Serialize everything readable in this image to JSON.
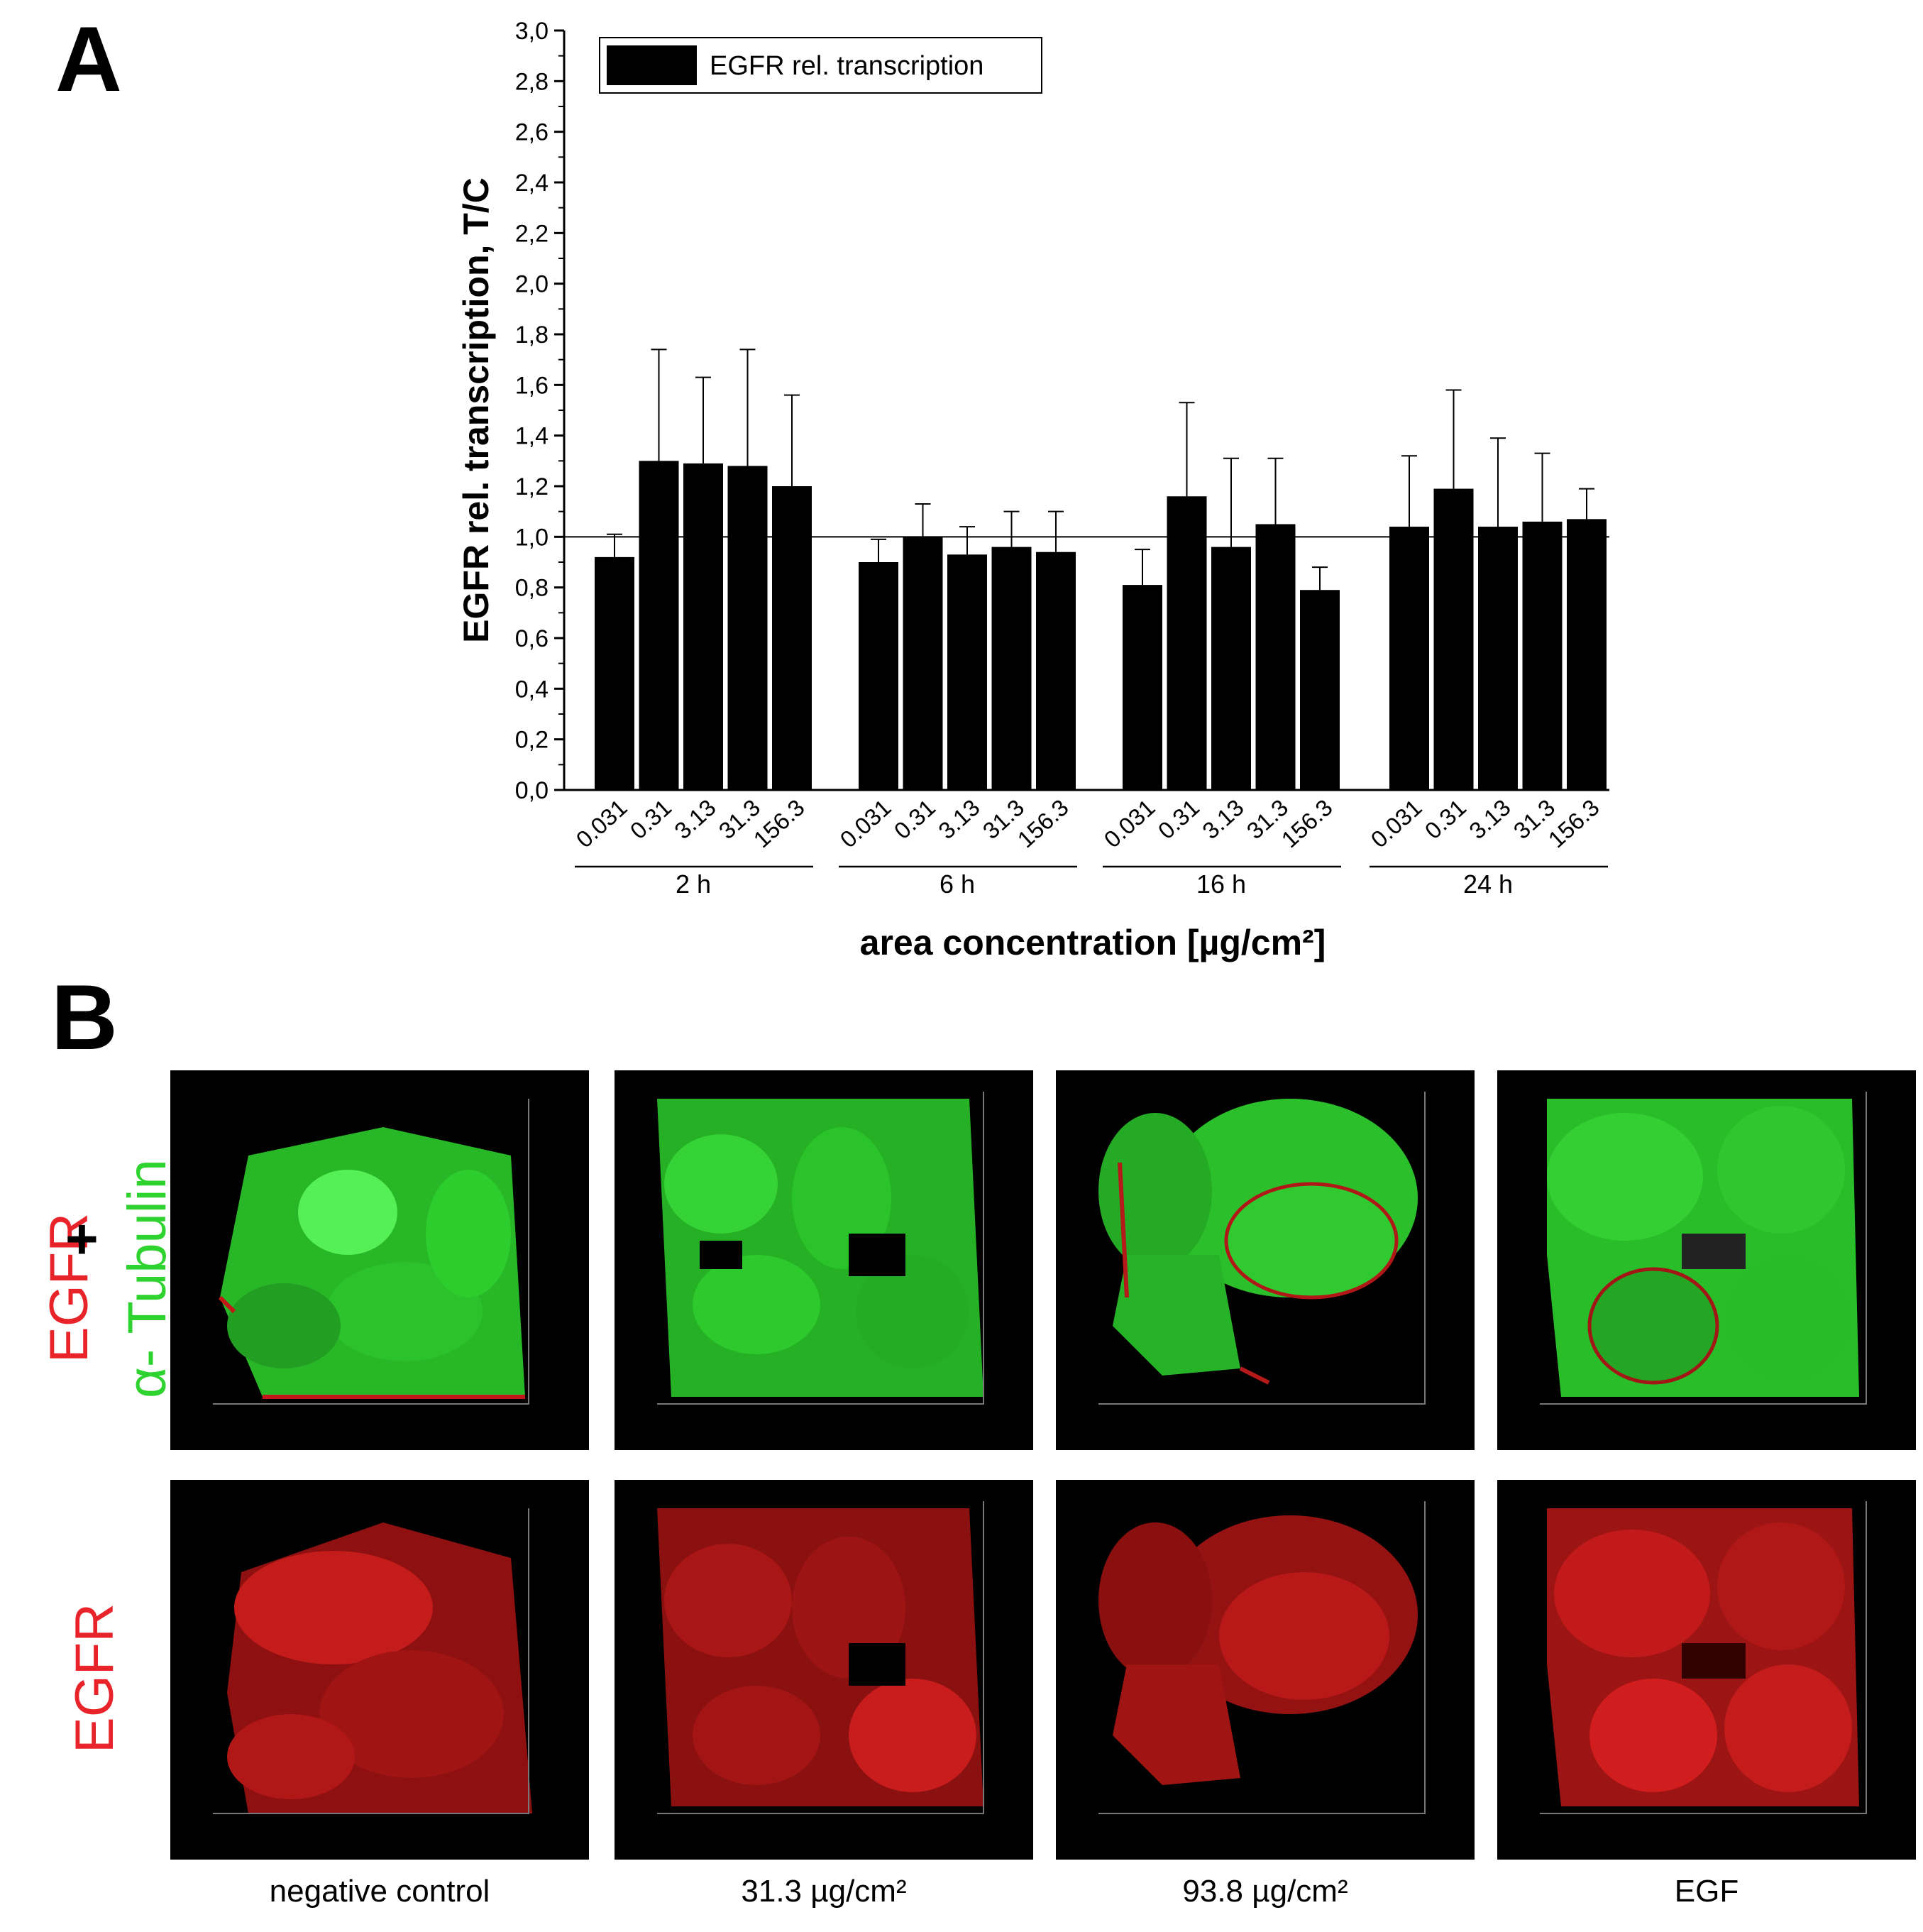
{
  "panel_a_label": "A",
  "panel_b_label": "B",
  "chart_data": {
    "type": "bar",
    "ylabel": "EGFR rel. transcription, T/C",
    "xlabel": "area concentration [µg/cm²]",
    "ylim": [
      0,
      3.0
    ],
    "y_ticks": [
      "0,0",
      "0,2",
      "0,4",
      "0,6",
      "0,8",
      "1,0",
      "1,2",
      "1,4",
      "1,6",
      "1,8",
      "2,0",
      "2,2",
      "2,4",
      "2,6",
      "2,8",
      "3,0"
    ],
    "reference_line": 1.0,
    "legend": {
      "label": "EGFR rel. transcription",
      "position": "top-left"
    },
    "bar_color": "#000000",
    "groups": [
      {
        "name": "2 h",
        "categories": [
          "0.031",
          "0.31",
          "3.13",
          "31.3",
          "156.3"
        ],
        "values": [
          0.92,
          1.3,
          1.29,
          1.28,
          1.2
        ],
        "errors": [
          0.09,
          0.44,
          0.34,
          0.46,
          0.36
        ]
      },
      {
        "name": "6 h",
        "categories": [
          "0.031",
          "0.31",
          "3.13",
          "31.3",
          "156.3"
        ],
        "values": [
          0.9,
          1.0,
          0.93,
          0.96,
          0.94
        ],
        "errors": [
          0.09,
          0.13,
          0.11,
          0.14,
          0.16
        ]
      },
      {
        "name": "16 h",
        "categories": [
          "0.031",
          "0.31",
          "3.13",
          "31.3",
          "156.3"
        ],
        "values": [
          0.81,
          1.16,
          0.96,
          1.05,
          0.79
        ],
        "errors": [
          0.14,
          0.37,
          0.35,
          0.26,
          0.09
        ]
      },
      {
        "name": "24 h",
        "categories": [
          "0.031",
          "0.31",
          "3.13",
          "31.3",
          "156.3"
        ],
        "values": [
          1.04,
          1.19,
          1.04,
          1.06,
          1.07
        ],
        "errors": [
          0.28,
          0.39,
          0.35,
          0.27,
          0.12
        ]
      }
    ]
  },
  "panel_b": {
    "row_labels": {
      "merged_top": "EGFR",
      "merged_plus": "+",
      "merged_bottom": "α- Tubulin",
      "single": "EGFR"
    },
    "colors": {
      "egfr": "#e8232a",
      "tubulin": "#2fd32f"
    },
    "conditions": [
      "negative control",
      "31.3 µg/cm²",
      "93.8 µg/cm²",
      "EGF"
    ]
  }
}
